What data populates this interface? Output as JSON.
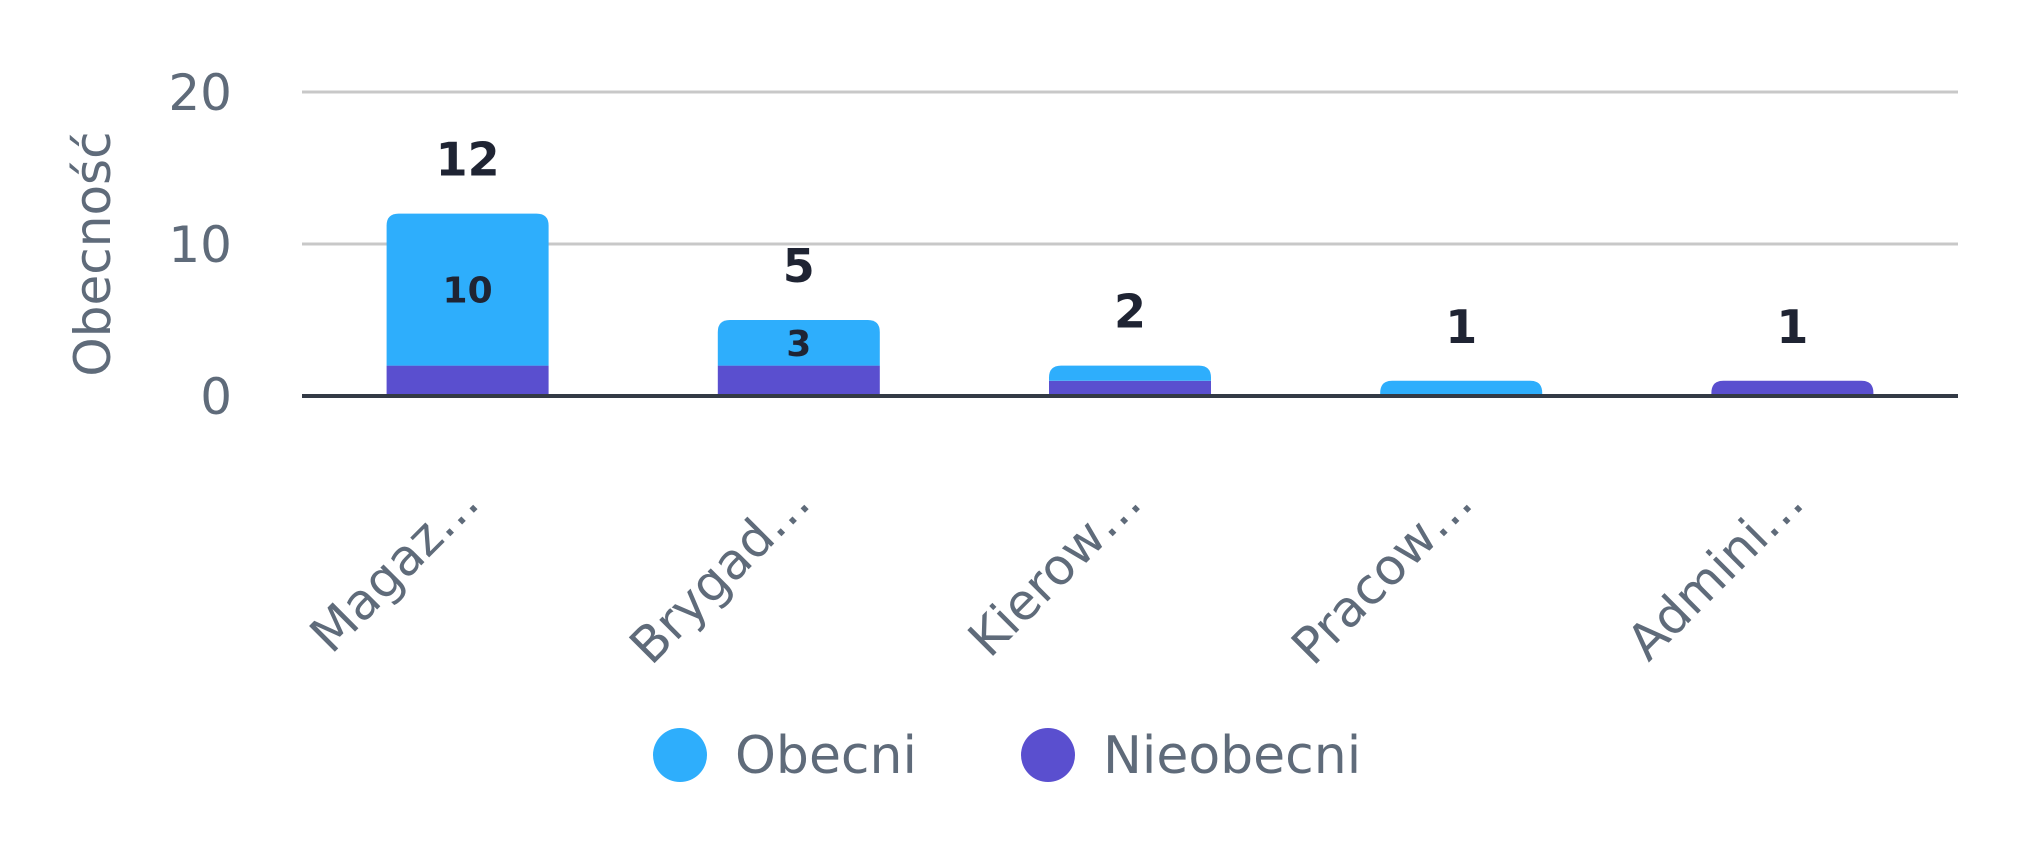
{
  "chart_data": {
    "type": "bar",
    "stacked": true,
    "categories": [
      "Magaz…",
      "Brygad…",
      "Kierow…",
      "Pracow…",
      "Admini…"
    ],
    "series": [
      {
        "name": "Nieobecni",
        "values": [
          2,
          2,
          1,
          0,
          1
        ],
        "color": "#5a4fcf"
      },
      {
        "name": "Obecni",
        "values": [
          10,
          3,
          1,
          1,
          0
        ],
        "color": "#2eaefc"
      }
    ],
    "totals": [
      12,
      5,
      2,
      1,
      1
    ],
    "inner_labels": [
      "10",
      "3",
      "",
      "",
      ""
    ],
    "ylabel": "Obecność",
    "xlabel": "",
    "yticks": [
      0,
      10,
      20
    ],
    "ylim": [
      0,
      20
    ],
    "grid": true,
    "legend": {
      "position": "bottom",
      "entries": [
        "Obecni",
        "Nieobecni"
      ]
    }
  }
}
